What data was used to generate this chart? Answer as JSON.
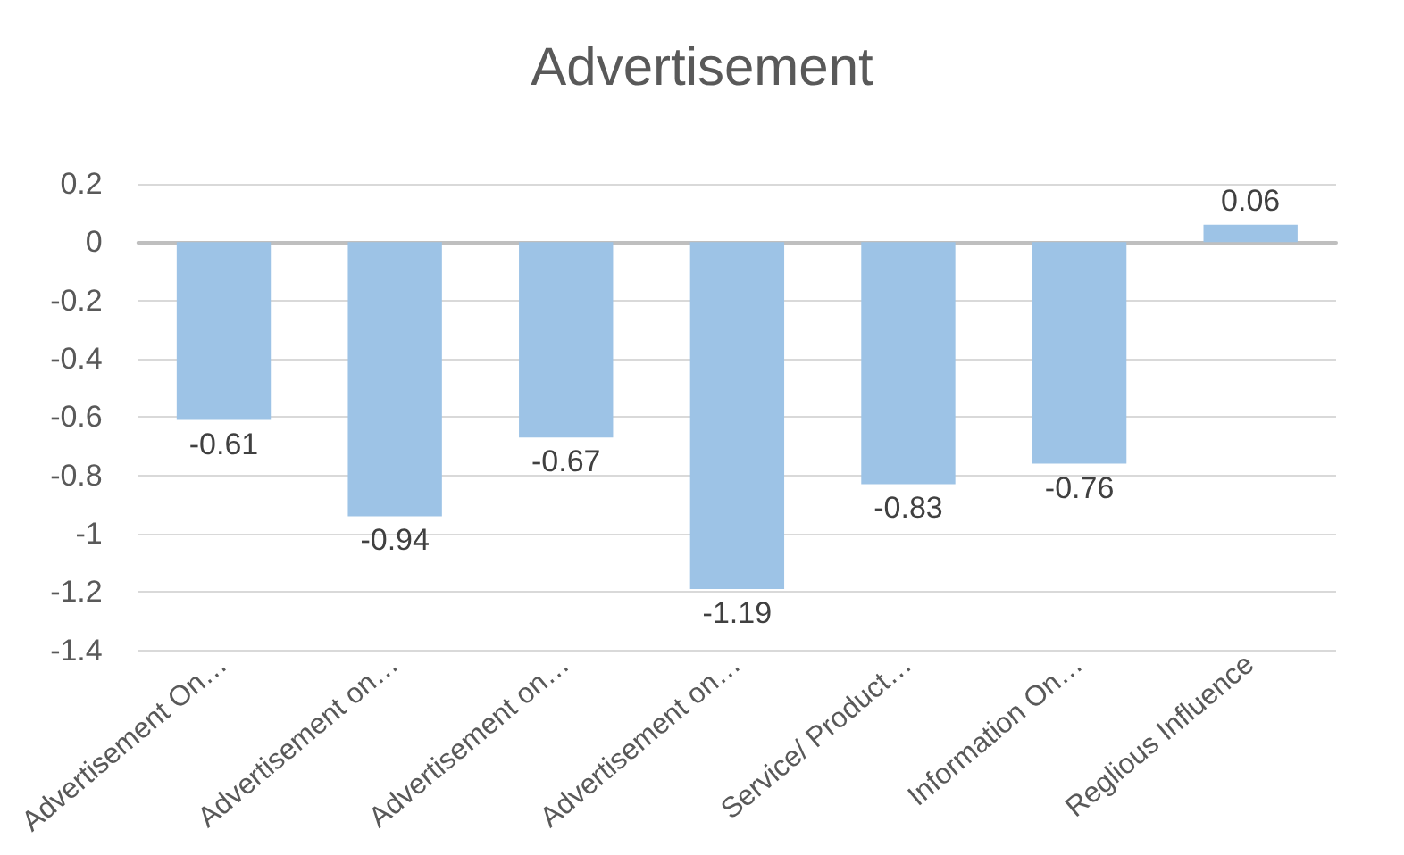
{
  "chart_data": {
    "type": "bar",
    "title": "Advertisement",
    "categories": [
      "Advertisement On…",
      "Advertisement on…",
      "Advertisement on…",
      "Advertisement on…",
      "Service/ Product…",
      "Information On…",
      "Reglious Influence"
    ],
    "values": [
      -0.61,
      -0.94,
      -0.67,
      -1.19,
      -0.83,
      -0.76,
      0.06
    ],
    "color": "#9dc3e6",
    "ylim": [
      -1.4,
      0.2
    ],
    "yticks": [
      -1.4,
      -1.2,
      -1,
      -0.8,
      -0.6,
      -0.4,
      -0.2,
      0,
      0.2
    ],
    "grid": "y",
    "data_labels": true
  }
}
